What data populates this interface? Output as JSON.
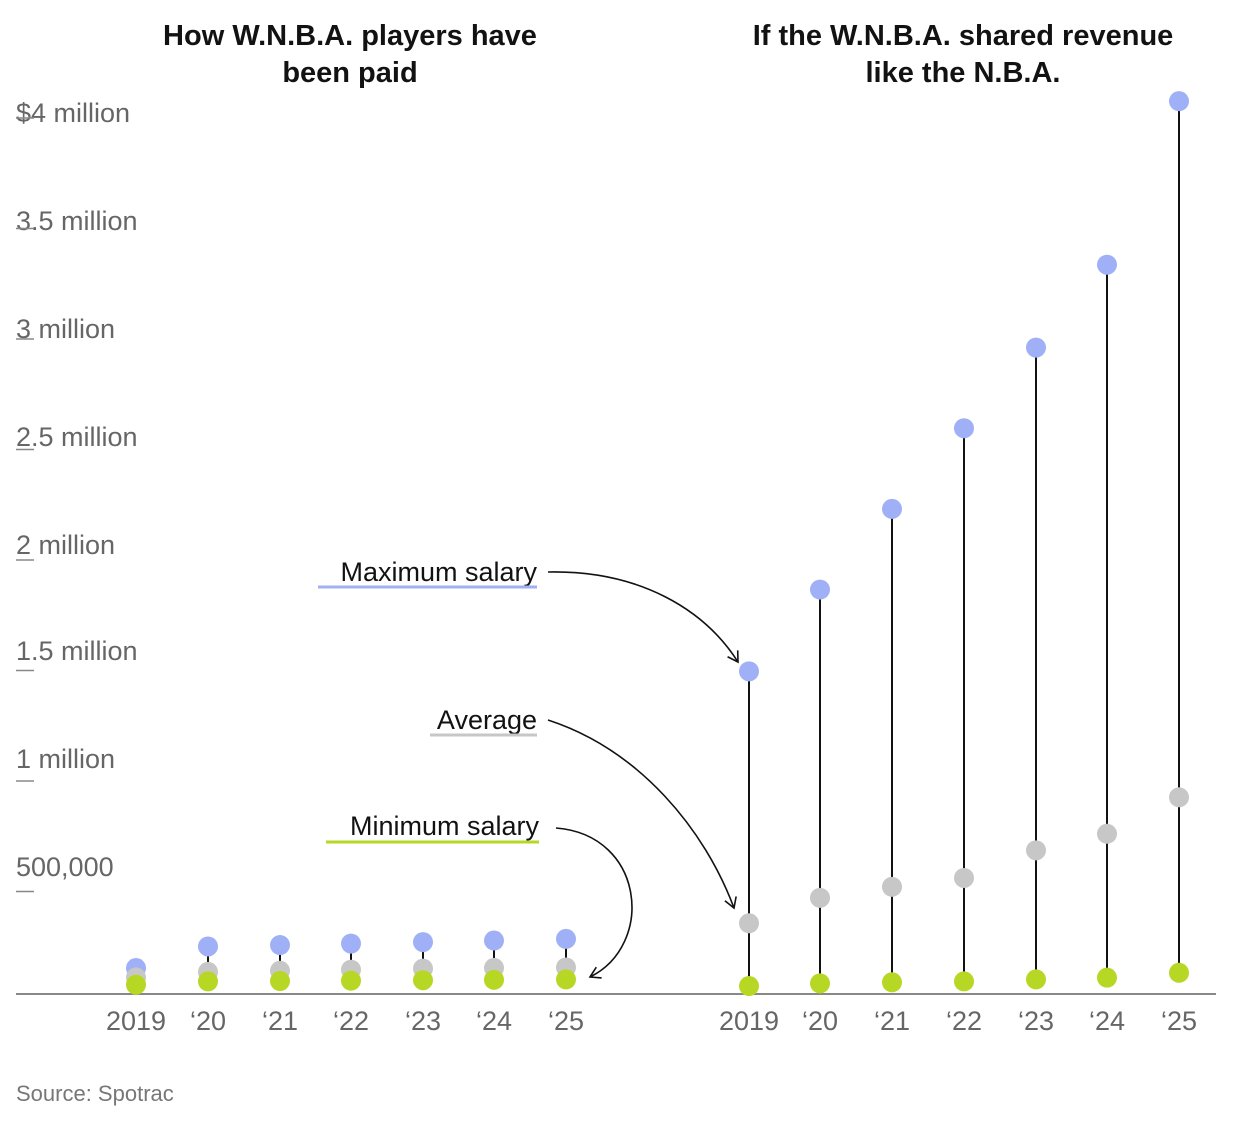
{
  "chart_data": {
    "type": "dot-range",
    "y_axis": {
      "min": 0,
      "max": 4000000,
      "ticks": [
        {
          "value": 500000,
          "label": "500,000"
        },
        {
          "value": 1000000,
          "label": "1 million"
        },
        {
          "value": 1500000,
          "label": "1.5 million"
        },
        {
          "value": 2000000,
          "label": "2 million"
        },
        {
          "value": 2500000,
          "label": "2.5 million"
        },
        {
          "value": 3000000,
          "label": "3 million"
        },
        {
          "value": 3500000,
          "label": "3.5 million"
        },
        {
          "value": 4000000,
          "label": "$4 million"
        }
      ]
    },
    "categories": [
      "2019",
      "‘20",
      "‘21",
      "‘22",
      "‘23",
      "‘24",
      "‘25"
    ],
    "panels": [
      {
        "title_lines": [
          "How W.N.B.A. players have",
          "been paid"
        ],
        "series": [
          {
            "name": "Maximum salary",
            "color": "#9fb0f7",
            "values": [
              117500,
              215000,
              221450,
              228094,
              234936,
              241984,
              249244
            ]
          },
          {
            "name": "Average",
            "color": "#c7c7c7",
            "values": [
              75000,
              100000,
              105000,
              110000,
              115000,
              118000,
              120000
            ]
          },
          {
            "name": "Minimum salary",
            "color": "#b6d825",
            "values": [
              41965,
              57000,
              58710,
              60471,
              62285,
              64154,
              66079
            ]
          }
        ]
      },
      {
        "title_lines": [
          "If the W.N.B.A. shared revenue",
          "like the N.B.A."
        ],
        "series": [
          {
            "name": "Maximum salary",
            "color": "#9fb0f7",
            "values": [
              1460000,
              1830000,
              2195000,
              2560000,
              2925000,
              3300000,
              4040000
            ]
          },
          {
            "name": "Average",
            "color": "#c7c7c7",
            "values": [
              320000,
              435000,
              485000,
              525000,
              650000,
              725000,
              890000
            ]
          },
          {
            "name": "Minimum salary",
            "color": "#b6d825",
            "values": [
              36000,
              48000,
              53000,
              57000,
              66000,
              74000,
              96000
            ]
          }
        ]
      }
    ],
    "annotations": {
      "maximum_label": "Maximum salary",
      "average_label": "Average",
      "minimum_label": "Minimum salary"
    },
    "colors": {
      "maximum": "#9fb0f7",
      "average": "#c7c7c7",
      "minimum": "#b6d825",
      "axis": "#888888",
      "stem": "#121212"
    },
    "source": "Source: Spotrac"
  }
}
